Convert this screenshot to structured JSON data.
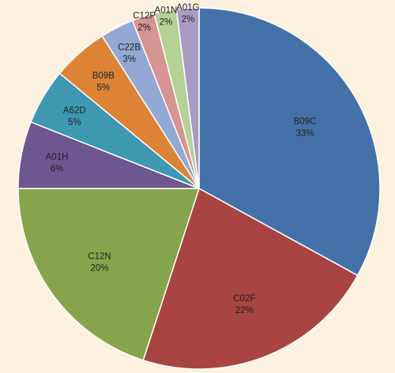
{
  "chart_data": {
    "type": "pie",
    "title": "",
    "slices": [
      {
        "label": "B09C",
        "value": 33,
        "value_label": "33%",
        "color": "#4472a8"
      },
      {
        "label": "C02F",
        "value": 22,
        "value_label": "22%",
        "color": "#a84442"
      },
      {
        "label": "C12N",
        "value": 20,
        "value_label": "20%",
        "color": "#86a44b"
      },
      {
        "label": "A01H",
        "value": 6,
        "value_label": "6%",
        "color": "#6e5690"
      },
      {
        "label": "A62D",
        "value": 5,
        "value_label": "5%",
        "color": "#3e98b1"
      },
      {
        "label": "B09B",
        "value": 5,
        "value_label": "5%",
        "color": "#dc8336"
      },
      {
        "label": "C22B",
        "value": 3,
        "value_label": "3%",
        "color": "#93a9d4"
      },
      {
        "label": "C12P",
        "value": 2,
        "value_label": "2%",
        "color": "#d69492"
      },
      {
        "label": "A01N",
        "value": 2,
        "value_label": "2%",
        "color": "#b5d196"
      },
      {
        "label": "A01G",
        "value": 2,
        "value_label": "2%",
        "color": "#a99cc3"
      }
    ]
  }
}
